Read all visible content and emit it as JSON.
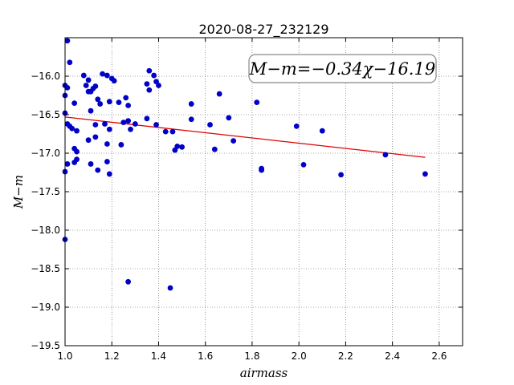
{
  "chart_data": {
    "type": "scatter",
    "title": "2020-08-27_232129",
    "xlabel": "airmass",
    "ylabel": "M−m",
    "xlim": [
      1.0,
      2.7
    ],
    "ylim": [
      -19.5,
      -15.5
    ],
    "y_inverted": true,
    "grid": true,
    "x_ticks": [
      1.0,
      1.2,
      1.4,
      1.6,
      1.8,
      2.0,
      2.2,
      2.4,
      2.6
    ],
    "x_tick_labels": [
      "1.0",
      "1.2",
      "1.4",
      "1.6",
      "1.8",
      "2.0",
      "2.2",
      "2.4",
      "2.6"
    ],
    "y_ticks": [
      -16.0,
      -16.5,
      -17.0,
      -17.5,
      -18.0,
      -18.5,
      -19.0,
      -19.5
    ],
    "y_tick_labels": [
      "−16.0",
      "−16.5",
      "−17.0",
      "−17.5",
      "−18.0",
      "−18.5",
      "−19.0",
      "−19.5"
    ],
    "annotation": "M−m=−0.34χ−16.19",
    "fit": {
      "slope": -0.34,
      "intercept": -16.19,
      "x_range": [
        1.0,
        2.54
      ],
      "color": "#e00000"
    },
    "marker_color": "#0000c8",
    "points": [
      [
        1.01,
        -15.54
      ],
      [
        1.02,
        -15.82
      ],
      [
        1.0,
        -16.12
      ],
      [
        1.01,
        -16.15
      ],
      [
        1.0,
        -16.25
      ],
      [
        1.0,
        -16.48
      ],
      [
        1.01,
        -16.62
      ],
      [
        1.02,
        -16.65
      ],
      [
        1.03,
        -16.68
      ],
      [
        1.05,
        -16.71
      ],
      [
        1.04,
        -16.35
      ],
      [
        1.08,
        -15.99
      ],
      [
        1.09,
        -16.12
      ],
      [
        1.1,
        -16.2
      ],
      [
        1.1,
        -16.05
      ],
      [
        1.11,
        -16.2
      ],
      [
        1.12,
        -16.16
      ],
      [
        1.13,
        -16.13
      ],
      [
        1.14,
        -16.3
      ],
      [
        1.15,
        -16.36
      ],
      [
        1.16,
        -15.97
      ],
      [
        1.18,
        -15.99
      ],
      [
        1.2,
        -16.03
      ],
      [
        1.21,
        -16.06
      ],
      [
        1.19,
        -16.33
      ],
      [
        1.11,
        -16.45
      ],
      [
        1.13,
        -16.63
      ],
      [
        1.17,
        -16.62
      ],
      [
        1.19,
        -16.69
      ],
      [
        1.13,
        -16.79
      ],
      [
        1.18,
        -16.88
      ],
      [
        1.1,
        -16.83
      ],
      [
        1.04,
        -16.94
      ],
      [
        1.05,
        -16.98
      ],
      [
        1.04,
        -17.12
      ],
      [
        1.05,
        -17.08
      ],
      [
        1.01,
        -17.14
      ],
      [
        1.0,
        -17.24
      ],
      [
        1.11,
        -17.14
      ],
      [
        1.14,
        -17.22
      ],
      [
        1.18,
        -17.11
      ],
      [
        1.19,
        -17.27
      ],
      [
        1.23,
        -16.34
      ],
      [
        1.26,
        -16.28
      ],
      [
        1.27,
        -16.38
      ],
      [
        1.25,
        -16.6
      ],
      [
        1.27,
        -16.58
      ],
      [
        1.28,
        -16.69
      ],
      [
        1.3,
        -16.62
      ],
      [
        1.24,
        -16.89
      ],
      [
        1.35,
        -16.1
      ],
      [
        1.36,
        -16.18
      ],
      [
        1.36,
        -15.93
      ],
      [
        1.38,
        -15.99
      ],
      [
        1.39,
        -16.07
      ],
      [
        1.4,
        -16.12
      ],
      [
        1.35,
        -16.55
      ],
      [
        1.39,
        -16.63
      ],
      [
        1.43,
        -16.72
      ],
      [
        1.46,
        -16.72
      ],
      [
        1.47,
        -16.96
      ],
      [
        1.48,
        -16.91
      ],
      [
        1.5,
        -16.92
      ],
      [
        1.54,
        -16.36
      ],
      [
        1.54,
        -16.56
      ],
      [
        1.62,
        -16.63
      ],
      [
        1.64,
        -16.95
      ],
      [
        1.66,
        -16.23
      ],
      [
        1.7,
        -16.54
      ],
      [
        1.72,
        -16.84
      ],
      [
        1.82,
        -16.34
      ],
      [
        1.84,
        -17.2
      ],
      [
        1.84,
        -17.22
      ],
      [
        1.99,
        -16.65
      ],
      [
        2.02,
        -17.15
      ],
      [
        2.1,
        -16.71
      ],
      [
        2.18,
        -17.28
      ],
      [
        2.37,
        -17.02
      ],
      [
        2.54,
        -17.27
      ],
      [
        1.0,
        -18.12
      ],
      [
        1.27,
        -18.67
      ],
      [
        1.45,
        -18.75
      ]
    ]
  }
}
